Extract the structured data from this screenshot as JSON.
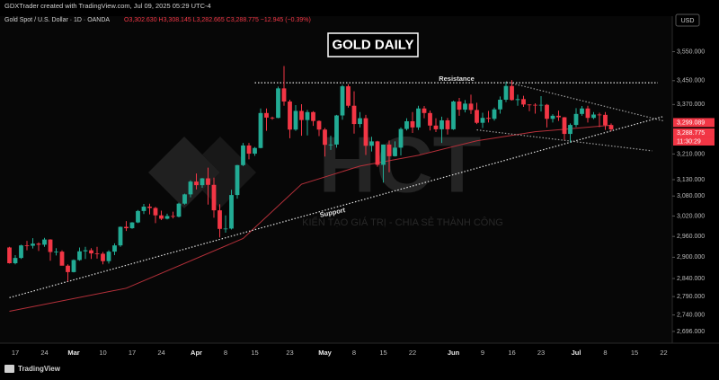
{
  "header": "GDXTrader created with TradingView.com, Jul 09, 2025 05:29 UTC-4",
  "chart_data": {
    "type": "candlestick",
    "symbol": "Gold Spot / U.S. Dollar · 1D · OANDA",
    "ohlc_text": "O3,302.630  H3,308.145  L3,282.665  C3,288.775  −12.945 (−0.39%)",
    "currency": "USD",
    "title": "GOLD DAILY",
    "annotations": [
      "Resistance",
      "Support"
    ],
    "watermark": "HCT",
    "watermark_tagline": "KIẾN TẠO GIÁ TRỊ - CHIA SẺ THÀNH CÔNG",
    "up_color": "#22ab94",
    "down_color": "#f23645",
    "log_scale": true,
    "grid": false,
    "ylim": [
      2665,
      3676
    ],
    "yticks": [
      {
        "value": 3550,
        "label": "3,550.000"
      },
      {
        "value": 3450,
        "label": "3,450.000"
      },
      {
        "value": 3370,
        "label": "3,370.000"
      },
      {
        "value": 3210,
        "label": "3,210.000"
      },
      {
        "value": 3130,
        "label": "3,130.000"
      },
      {
        "value": 3080,
        "label": "3,080.000"
      },
      {
        "value": 3020,
        "label": "3,020.000"
      },
      {
        "value": 2960,
        "label": "2,960.000"
      },
      {
        "value": 2900,
        "label": "2,900.000"
      },
      {
        "value": 2840,
        "label": "2,840.000"
      },
      {
        "value": 2790,
        "label": "2,790.000"
      },
      {
        "value": 2740,
        "label": "2,740.000"
      },
      {
        "value": 2696,
        "label": "2,696.000"
      }
    ],
    "price_labels": [
      {
        "value": 3299.089,
        "label": "3,299.089"
      },
      {
        "value": 3288.775,
        "label": "3,288.775"
      }
    ],
    "countdown": "11:30:29",
    "categories": [
      null,
      "17",
      null,
      null,
      null,
      null,
      "24",
      null,
      null,
      null,
      null,
      "Mar",
      null,
      null,
      null,
      null,
      "10",
      null,
      null,
      null,
      null,
      "17",
      null,
      null,
      null,
      null,
      "24",
      null,
      null,
      null,
      null,
      null,
      "Apr",
      null,
      null,
      null,
      null,
      "8",
      null,
      null,
      null,
      null,
      "15",
      null,
      null,
      null,
      null,
      null,
      "23",
      null,
      null,
      null,
      null,
      null,
      "May",
      null,
      null,
      null,
      null,
      "8",
      null,
      null,
      null,
      null,
      "15",
      null,
      null,
      null,
      null,
      "22",
      null,
      null,
      null,
      null,
      null,
      null,
      "Jun",
      null,
      null,
      null,
      null,
      "9",
      null,
      null,
      null,
      null,
      "16",
      null,
      null,
      null,
      null,
      "23",
      null,
      null,
      null,
      null,
      null,
      "Jul",
      null,
      null,
      null,
      null,
      "8",
      null,
      null,
      null,
      null,
      "15",
      null,
      null,
      null,
      null,
      "22"
    ],
    "values": [
      [
        2928,
        2930,
        2882,
        2883
      ],
      [
        2883,
        2906,
        2880,
        2898
      ],
      [
        2898,
        2936,
        2895,
        2934
      ],
      [
        2934,
        2947,
        2920,
        2933
      ],
      [
        2933,
        2955,
        2925,
        2939
      ],
      [
        2939,
        2943,
        2918,
        2936
      ],
      [
        2936,
        2956,
        2930,
        2951
      ],
      [
        2951,
        2952,
        2890,
        2915
      ],
      [
        2915,
        2926,
        2905,
        2916
      ],
      [
        2916,
        2920,
        2877,
        2876
      ],
      [
        2876,
        2880,
        2832,
        2858
      ],
      [
        2858,
        2894,
        2857,
        2892
      ],
      [
        2892,
        2928,
        2890,
        2917
      ],
      [
        2917,
        2930,
        2895,
        2920
      ],
      [
        2920,
        2926,
        2895,
        2911
      ],
      [
        2911,
        2930,
        2896,
        2910
      ],
      [
        2910,
        2915,
        2880,
        2889
      ],
      [
        2889,
        2920,
        2882,
        2916
      ],
      [
        2916,
        2940,
        2906,
        2934
      ],
      [
        2934,
        2989,
        2930,
        2988
      ],
      [
        2988,
        3005,
        2976,
        2984
      ],
      [
        2984,
        3002,
        2982,
        3001
      ],
      [
        3001,
        3038,
        2999,
        3035
      ],
      [
        3035,
        3056,
        3026,
        3048
      ],
      [
        3048,
        3057,
        3025,
        3044
      ],
      [
        3044,
        3047,
        2999,
        3022
      ],
      [
        3022,
        3036,
        3008,
        3012
      ],
      [
        3012,
        3027,
        3010,
        3020
      ],
      [
        3020,
        3033,
        3013,
        3018
      ],
      [
        3018,
        3060,
        3016,
        3057
      ],
      [
        3057,
        3087,
        3054,
        3085
      ],
      [
        3085,
        3128,
        3076,
        3124
      ],
      [
        3124,
        3149,
        3100,
        3113
      ],
      [
        3113,
        3135,
        3105,
        3134
      ],
      [
        3134,
        3167,
        3054,
        3114
      ],
      [
        3114,
        3136,
        3015,
        3037
      ],
      [
        3037,
        3055,
        2957,
        2982
      ],
      [
        2982,
        3022,
        2971,
        2983
      ],
      [
        2983,
        3099,
        2980,
        3083
      ],
      [
        3083,
        3176,
        3072,
        3175
      ],
      [
        3175,
        3245,
        3172,
        3237
      ],
      [
        3237,
        3245,
        3193,
        3211
      ],
      [
        3211,
        3232,
        3204,
        3229
      ],
      [
        3229,
        3357,
        3228,
        3342
      ],
      [
        3342,
        3357,
        3284,
        3327
      ],
      [
        3327,
        3330,
        3320,
        3326
      ],
      [
        3326,
        3430,
        3325,
        3424
      ],
      [
        3424,
        3500,
        3366,
        3380
      ],
      [
        3380,
        3386,
        3260,
        3288
      ],
      [
        3288,
        3368,
        3284,
        3349
      ],
      [
        3349,
        3371,
        3268,
        3319
      ],
      [
        3319,
        3352,
        3269,
        3345
      ],
      [
        3345,
        3348,
        3300,
        3316
      ],
      [
        3316,
        3318,
        3267,
        3288
      ],
      [
        3288,
        3293,
        3202,
        3239
      ],
      [
        3239,
        3268,
        3223,
        3240
      ],
      [
        3240,
        3336,
        3230,
        3334
      ],
      [
        3334,
        3436,
        3320,
        3431
      ],
      [
        3431,
        3438,
        3360,
        3366
      ],
      [
        3366,
        3414,
        3275,
        3306
      ],
      [
        3306,
        3345,
        3295,
        3325
      ],
      [
        3325,
        3336,
        3207,
        3236
      ],
      [
        3236,
        3265,
        3218,
        3250
      ],
      [
        3250,
        3252,
        3170,
        3176
      ],
      [
        3176,
        3240,
        3121,
        3240
      ],
      [
        3240,
        3253,
        3153,
        3203
      ],
      [
        3203,
        3250,
        3202,
        3230
      ],
      [
        3230,
        3295,
        3205,
        3290
      ],
      [
        3290,
        3325,
        3285,
        3315
      ],
      [
        3315,
        3345,
        3277,
        3295
      ],
      [
        3295,
        3366,
        3287,
        3357
      ],
      [
        3357,
        3365,
        3325,
        3342
      ],
      [
        3342,
        3350,
        3285,
        3301
      ],
      [
        3301,
        3325,
        3280,
        3289
      ],
      [
        3289,
        3330,
        3245,
        3318
      ],
      [
        3318,
        3326,
        3272,
        3289
      ],
      [
        3289,
        3383,
        3287,
        3380
      ],
      [
        3380,
        3392,
        3333,
        3353
      ],
      [
        3353,
        3385,
        3344,
        3373
      ],
      [
        3373,
        3403,
        3339,
        3352
      ],
      [
        3352,
        3376,
        3306,
        3310
      ],
      [
        3310,
        3343,
        3293,
        3326
      ],
      [
        3326,
        3349,
        3311,
        3323
      ],
      [
        3323,
        3360,
        3317,
        3354
      ],
      [
        3354,
        3397,
        3340,
        3386
      ],
      [
        3386,
        3446,
        3378,
        3432
      ],
      [
        3432,
        3452,
        3383,
        3385
      ],
      [
        3385,
        3403,
        3366,
        3388
      ],
      [
        3388,
        3399,
        3362,
        3370
      ],
      [
        3370,
        3371,
        3348,
        3369
      ],
      [
        3369,
        3374,
        3340,
        3368
      ],
      [
        3368,
        3398,
        3347,
        3369
      ],
      [
        3369,
        3372,
        3295,
        3323
      ],
      [
        3323,
        3338,
        3311,
        3333
      ],
      [
        3333,
        3350,
        3316,
        3328
      ],
      [
        3328,
        3329,
        3255,
        3274
      ],
      [
        3274,
        3308,
        3247,
        3303
      ],
      [
        3303,
        3358,
        3296,
        3339
      ],
      [
        3339,
        3365,
        3333,
        3357
      ],
      [
        3357,
        3366,
        3311,
        3326
      ],
      [
        3326,
        3345,
        3322,
        3337
      ],
      [
        3337,
        3343,
        3296,
        3336
      ],
      [
        3336,
        3345,
        3287,
        3302
      ],
      [
        3302.63,
        3308.145,
        3282.665,
        3288.775
      ],
      null,
      null,
      null,
      null,
      null,
      null,
      null,
      null,
      null
    ],
    "overlays": [
      {
        "color": "#b5303a",
        "style": "solid",
        "x": [
          0,
          20,
          40,
          50,
          60,
          70,
          80,
          90,
          103
        ],
        "y": [
          2750,
          2813,
          2954,
          3116,
          3172,
          3206,
          3252,
          3281,
          3302
        ]
      },
      {
        "color": "#e0e0e0",
        "style": "dotted",
        "x": [
          0,
          112
        ],
        "y": [
          2787,
          3331
        ]
      },
      {
        "color": "#e0e0e0",
        "style": "dotted",
        "x": [
          42,
          111
        ],
        "y": [
          3443,
          3443
        ]
      },
      {
        "color": "#9e9e9e",
        "style": "dotted",
        "x": [
          85,
          112
        ],
        "y": [
          3446,
          3316
        ]
      },
      {
        "color": "#9e9e9e",
        "style": "dotted",
        "x": [
          80,
          110
        ],
        "y": [
          3287,
          3220
        ]
      }
    ]
  },
  "footer": "TradingView"
}
